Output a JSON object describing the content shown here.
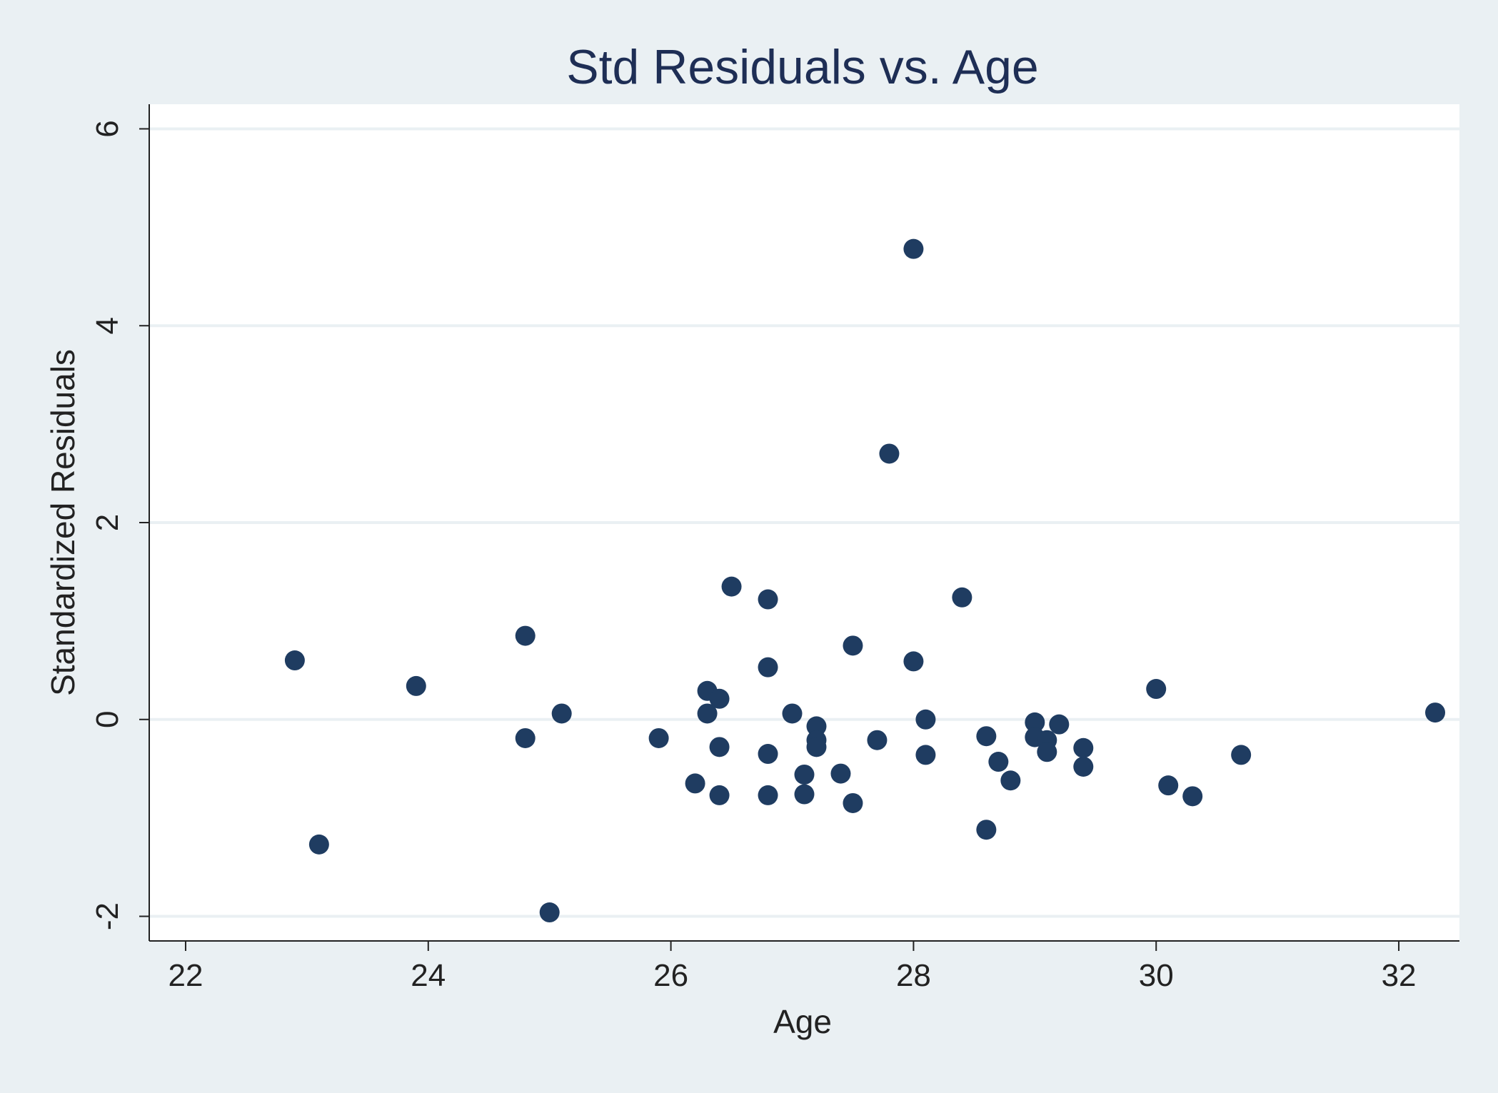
{
  "chart_data": {
    "type": "scatter",
    "title": "Std Residuals vs. Age",
    "xlabel": "Age",
    "ylabel": "Standardized Residuals",
    "xlim": [
      21.7,
      32.5
    ],
    "ylim": [
      -2.25,
      6.25
    ],
    "xticks": [
      22,
      24,
      26,
      28,
      30,
      32
    ],
    "yticks": [
      -2,
      0,
      2,
      4,
      6
    ],
    "xtick_labels": [
      "22",
      "24",
      "26",
      "28",
      "30",
      "32"
    ],
    "ytick_labels": [
      "-2",
      "0",
      "2",
      "4",
      "6"
    ],
    "grid": "horizontal",
    "colors": {
      "background": "#eaf0f3",
      "plot_area": "#ffffff",
      "gridline": "#eaf0f3",
      "marker": "#1f3c61",
      "text": "#222222",
      "title": "#1e2e55"
    },
    "points": [
      {
        "x": 22.9,
        "y": 0.6
      },
      {
        "x": 23.1,
        "y": -1.27
      },
      {
        "x": 23.9,
        "y": 0.34
      },
      {
        "x": 24.8,
        "y": 0.85
      },
      {
        "x": 24.8,
        "y": -0.19
      },
      {
        "x": 25.0,
        "y": -1.96
      },
      {
        "x": 25.1,
        "y": 0.06
      },
      {
        "x": 25.9,
        "y": -0.19
      },
      {
        "x": 26.2,
        "y": -0.65
      },
      {
        "x": 26.3,
        "y": 0.29
      },
      {
        "x": 26.3,
        "y": 0.06
      },
      {
        "x": 26.4,
        "y": 0.21
      },
      {
        "x": 26.4,
        "y": -0.28
      },
      {
        "x": 26.4,
        "y": -0.77
      },
      {
        "x": 26.5,
        "y": 1.35
      },
      {
        "x": 26.8,
        "y": 1.22
      },
      {
        "x": 26.8,
        "y": 0.53
      },
      {
        "x": 26.8,
        "y": -0.35
      },
      {
        "x": 26.8,
        "y": -0.77
      },
      {
        "x": 27.0,
        "y": 0.06
      },
      {
        "x": 27.1,
        "y": -0.56
      },
      {
        "x": 27.1,
        "y": -0.76
      },
      {
        "x": 27.2,
        "y": -0.07
      },
      {
        "x": 27.2,
        "y": -0.21
      },
      {
        "x": 27.2,
        "y": -0.28
      },
      {
        "x": 27.4,
        "y": -0.55
      },
      {
        "x": 27.5,
        "y": 0.75
      },
      {
        "x": 27.5,
        "y": -0.85
      },
      {
        "x": 27.7,
        "y": -0.21
      },
      {
        "x": 27.8,
        "y": 2.7
      },
      {
        "x": 28.0,
        "y": 4.78
      },
      {
        "x": 28.0,
        "y": 0.59
      },
      {
        "x": 28.1,
        "y": 0.0
      },
      {
        "x": 28.1,
        "y": -0.36
      },
      {
        "x": 28.4,
        "y": 1.24
      },
      {
        "x": 28.6,
        "y": -0.17
      },
      {
        "x": 28.6,
        "y": -1.12
      },
      {
        "x": 28.7,
        "y": -0.43
      },
      {
        "x": 28.8,
        "y": -0.62
      },
      {
        "x": 29.0,
        "y": -0.03
      },
      {
        "x": 29.0,
        "y": -0.18
      },
      {
        "x": 29.1,
        "y": -0.21
      },
      {
        "x": 29.1,
        "y": -0.33
      },
      {
        "x": 29.2,
        "y": -0.05
      },
      {
        "x": 29.4,
        "y": -0.29
      },
      {
        "x": 29.4,
        "y": -0.48
      },
      {
        "x": 30.0,
        "y": 0.31
      },
      {
        "x": 30.1,
        "y": -0.67
      },
      {
        "x": 30.3,
        "y": -0.78
      },
      {
        "x": 30.7,
        "y": -0.36
      },
      {
        "x": 32.3,
        "y": 0.07
      }
    ]
  }
}
